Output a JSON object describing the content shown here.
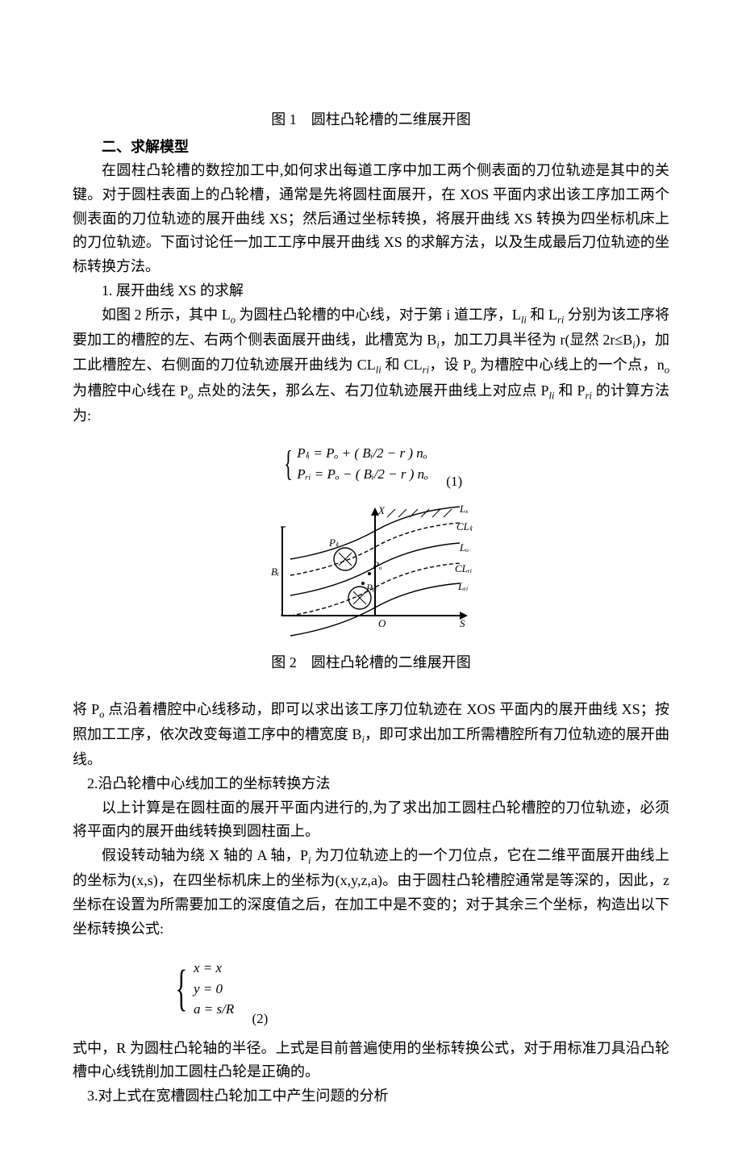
{
  "fig1_caption": "图 1　圆柱凸轮槽的二维展开图",
  "section2_heading": "二、求解模型",
  "p1": "在圆柱凸轮槽的数控加工中,如何求出每道工序中加工两个侧表面的刀位轨迹是其中的关键。对于圆柱表面上的凸轮槽，通常是先将圆柱面展开，在 XOS 平面内求出该工序加工两个侧表面的刀位轨迹的展开曲线 XS；然后通过坐标转换，将展开曲线 XS 转换为四坐标机床上的刀位轨迹。下面讨论任一加工工序中展开曲线 XS 的求解方法，以及生成最后刀位轨迹的坐标转换方法。",
  "p2_label": "1. 展开曲线 XS 的求解",
  "p3_pre": "如图 2 所示，其中 L",
  "p3_o": "o",
  "p3_a": " 为圆柱凸轮槽的中心线，对于第 i 道工序，L",
  "p3_li": "li",
  "p3_b": " 和 L",
  "p3_ri": "ri",
  "p3_c": " 分别为该工序将要加工的槽腔的左、右两个侧表面展开曲线，此槽宽为 B",
  "p3_i": "i",
  "p3_d": "，加工刀具半径为 r(显然 2r≤B",
  "p3_i2": "i",
  "p3_e": ")，加工此槽腔左、右侧面的刀位轨迹展开曲线为 CL",
  "p3_li2": "li",
  "p3_f": " 和 CL",
  "p3_ri2": "ri",
  "p3_g": "，设 P",
  "p3_o2": "o",
  "p3_h": " 为槽腔中心线上的一个点，n",
  "p3_o3": "o",
  "p3_j": " 为槽腔中心线在 P",
  "p3_o4": "o",
  "p3_k": " 点处的法矢，那么左、右刀位轨迹展开曲线上对应点 P",
  "p3_li3": "li",
  "p3_l": " 和 P",
  "p3_ri3": "ri",
  "p3_m": " 的计算方法为:",
  "eq1_line1": "Pₗᵢ = Pₒ + ( Bᵢ/2 − r ) nₒ",
  "eq1_line2": "Pᵣᵢ = Pₒ − ( Bᵢ/2 − r ) nₒ",
  "eq1_num": "(1)",
  "fig2_caption": "图 2　圆柱凸轮槽的二维展开图",
  "fig2": {
    "labels": {
      "X": "X",
      "S": "S",
      "O": "O",
      "Bi": "Bᵢ",
      "Lx": "Lₓ",
      "CLu": "CLₗᵢ",
      "Lo": "Lₒ",
      "CLri": "CLᵣᵢ",
      "Lri": "Lᵣᵢ",
      "Pu": "Pₗᵢ",
      "Po": "Pₒ",
      "Pn": "Pᵣᵢ"
    },
    "stroke": "#000000",
    "font_family": "Times New Roman",
    "font_style": "italic",
    "font_size": 13,
    "axis_width": 2,
    "line_width": 1.4,
    "dash": "5,3"
  },
  "p4_a": "将 P",
  "p4_o": "o",
  "p4_b": " 点沿着槽腔中心线移动，即可以求出该工序刀位轨迹在 XOS 平面内的展开曲线 XS；按照加工工序，依次改变每道工序中的槽宽度 B",
  "p4_i": "i",
  "p4_c": "，即可求出加工所需槽腔所有刀位轨迹的展开曲线。",
  "p5_label": "2.沿凸轮槽中心线加工的坐标转换方法",
  "p6": "以上计算是在圆柱面的展开平面内进行的,为了求出加工圆柱凸轮槽腔的刀位轨迹，必须将平面内的展开曲线转换到圆柱面上。",
  "p7_a": "假设转动轴为绕 X 轴的 A 轴，P",
  "p7_i": "i",
  "p7_b": " 为刀位轨迹上的一个刀位点，它在二维平面展开曲线上的坐标为(x,s)，在四坐标机床上的坐标为(x,y,z,a)。由于圆柱凸轮槽腔通常是等深的，因此，z 坐标在设置为所需要加工的深度值之后，在加工中是不变的；对于其余三个坐标，构造出以下坐标转换公式:",
  "eq2_line1": "x = x",
  "eq2_line2": "y = 0",
  "eq2_line3": "a = s/R",
  "eq2_num": "(2)",
  "p8": "式中，R 为圆柱凸轮轴的半径。上式是目前普遍使用的坐标转换公式，对于用标准刀具沿凸轮槽中心线铣削加工圆柱凸轮是正确的。",
  "p9_label": "3.对上式在宽槽圆柱凸轮加工中产生问题的分析"
}
